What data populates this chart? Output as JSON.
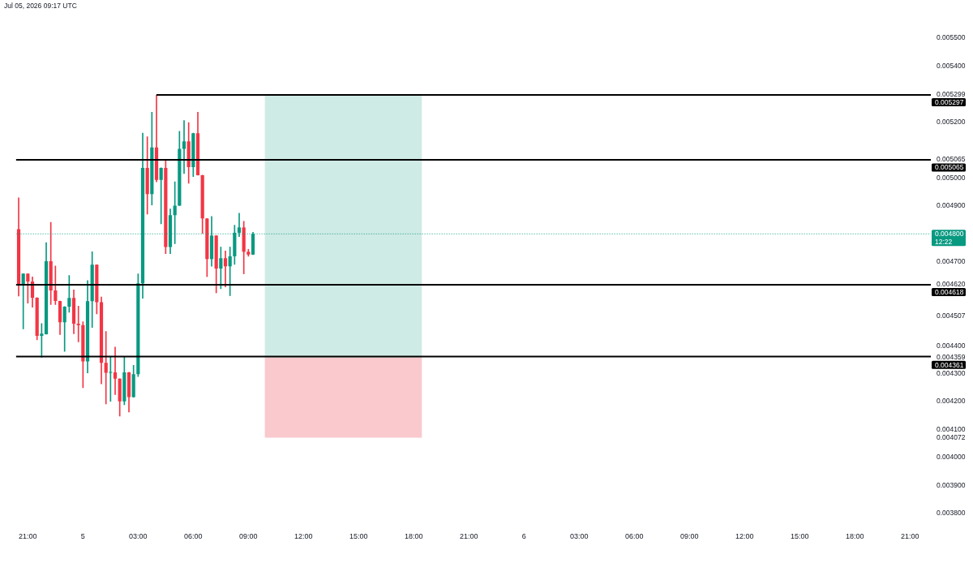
{
  "chart_data": {
    "type": "candlestick",
    "title": "Jul 05, 2026 09:17 UTC",
    "x": [
      "2026-07-04T20:30",
      "2026-07-04T20:45",
      "2026-07-04T21:00",
      "2026-07-04T21:15",
      "2026-07-04T21:30",
      "2026-07-04T21:45",
      "2026-07-04T22:00",
      "2026-07-04T22:15",
      "2026-07-04T22:30",
      "2026-07-04T22:45",
      "2026-07-04T23:00",
      "2026-07-04T23:15",
      "2026-07-04T23:30",
      "2026-07-04T23:45",
      "2026-07-05T00:00",
      "2026-07-05T00:15",
      "2026-07-05T00:30",
      "2026-07-05T00:45",
      "2026-07-05T01:00",
      "2026-07-05T01:15",
      "2026-07-05T01:30",
      "2026-07-05T01:45",
      "2026-07-05T02:00",
      "2026-07-05T02:15",
      "2026-07-05T02:30",
      "2026-07-05T02:45",
      "2026-07-05T03:00",
      "2026-07-05T03:15",
      "2026-07-05T03:30",
      "2026-07-05T03:45",
      "2026-07-05T04:00",
      "2026-07-05T04:15",
      "2026-07-05T04:30",
      "2026-07-05T04:45",
      "2026-07-05T05:00",
      "2026-07-05T05:15",
      "2026-07-05T05:30",
      "2026-07-05T05:45",
      "2026-07-05T06:00",
      "2026-07-05T06:15",
      "2026-07-05T06:30",
      "2026-07-05T06:45",
      "2026-07-05T07:00",
      "2026-07-05T07:15",
      "2026-07-05T07:30",
      "2026-07-05T07:45",
      "2026-07-05T08:00",
      "2026-07-05T08:15",
      "2026-07-05T08:30",
      "2026-07-05T08:45",
      "2026-07-05T09:00",
      "2026-07-05T09:15"
    ],
    "ohlc": [
      [
        0.004817,
        0.004929,
        0.004578,
        0.004617
      ],
      [
        0.004617,
        0.004658,
        0.00446,
        0.004658
      ],
      [
        0.004658,
        0.004658,
        0.004552,
        0.00463
      ],
      [
        0.00463,
        0.004646,
        0.004538,
        0.004572
      ],
      [
        0.004572,
        0.004572,
        0.004421,
        0.004435
      ],
      [
        0.004435,
        0.004479,
        0.004359,
        0.004443
      ],
      [
        0.004441,
        0.004769,
        0.004441,
        0.004702
      ],
      [
        0.004702,
        0.004841,
        0.004547,
        0.004598
      ],
      [
        0.004598,
        0.004685,
        0.004547,
        0.00456
      ],
      [
        0.00456,
        0.00456,
        0.00444,
        0.004484
      ],
      [
        0.004484,
        0.00454,
        0.00438,
        0.00454
      ],
      [
        0.00454,
        0.004651,
        0.00452,
        0.004571
      ],
      [
        0.004571,
        0.0046,
        0.004443,
        0.004479
      ],
      [
        0.004479,
        0.004542,
        0.004414,
        0.004474
      ],
      [
        0.004474,
        0.004486,
        0.00425,
        0.004344
      ],
      [
        0.004344,
        0.004633,
        0.004303,
        0.004559
      ],
      [
        0.004559,
        0.004736,
        0.004465,
        0.00469
      ],
      [
        0.00469,
        0.00469,
        0.004514,
        0.004556
      ],
      [
        0.004556,
        0.004574,
        0.004264,
        0.004339
      ],
      [
        0.004339,
        0.004451,
        0.004192,
        0.004303
      ],
      [
        0.004303,
        0.004359,
        0.004201,
        0.004305
      ],
      [
        0.004305,
        0.004395,
        0.004225,
        0.004282
      ],
      [
        0.004282,
        0.004282,
        0.004148,
        0.004201
      ],
      [
        0.004201,
        0.004361,
        0.004189,
        0.004305
      ],
      [
        0.004305,
        0.004305,
        0.004163,
        0.004216
      ],
      [
        0.004216,
        0.00433,
        0.004216,
        0.004298
      ],
      [
        0.004298,
        0.004657,
        0.00429,
        0.004623
      ],
      [
        0.004623,
        0.00516,
        0.00457,
        0.005036
      ],
      [
        0.005036,
        0.005147,
        0.004871,
        0.004942
      ],
      [
        0.004942,
        0.005235,
        0.004903,
        0.005109
      ],
      [
        0.005109,
        0.005297,
        0.004986,
        0.004993
      ],
      [
        0.004993,
        0.005036,
        0.004836,
        0.005036
      ],
      [
        0.005036,
        0.005063,
        0.004729,
        0.004753
      ],
      [
        0.004753,
        0.004889,
        0.004729,
        0.004867
      ],
      [
        0.004867,
        0.004986,
        0.004765,
        0.004901
      ],
      [
        0.004901,
        0.005167,
        0.004901,
        0.005104
      ],
      [
        0.005104,
        0.005205,
        0.005016,
        0.005131
      ],
      [
        0.005131,
        0.005198,
        0.004981,
        0.005039
      ],
      [
        0.005039,
        0.00516,
        0.005005,
        0.00516
      ],
      [
        0.00516,
        0.005235,
        0.00501,
        0.00501
      ],
      [
        0.00501,
        0.00501,
        0.004802,
        0.004855
      ],
      [
        0.004855,
        0.004855,
        0.004647,
        0.00471
      ],
      [
        0.00471,
        0.004862,
        0.004684,
        0.004794
      ],
      [
        0.004794,
        0.004794,
        0.004589,
        0.004676
      ],
      [
        0.004676,
        0.004753,
        0.004604,
        0.004713
      ],
      [
        0.004713,
        0.004739,
        0.00461,
        0.004684
      ],
      [
        0.004684,
        0.004753,
        0.004579,
        0.00472
      ],
      [
        0.00472,
        0.004831,
        0.004691,
        0.004804
      ],
      [
        0.004804,
        0.004874,
        0.00479,
        0.004823
      ],
      [
        0.004823,
        0.004845,
        0.004657,
        0.004736
      ],
      [
        0.004736,
        0.004745,
        0.00472,
        0.004726
      ],
      [
        0.004726,
        0.004806,
        0.004726,
        0.0048
      ]
    ],
    "colors": [
      "#f23645",
      "#089981",
      "#f23645",
      "#f23645",
      "#f23645",
      "#089981",
      "#089981",
      "#f23645",
      "#f23645",
      "#f23645",
      "#089981",
      "#089981",
      "#f23645",
      "#f23645",
      "#f23645",
      "#089981",
      "#089981",
      "#f23645",
      "#f23645",
      "#f23645",
      "#089981",
      "#f23645",
      "#f23645",
      "#089981",
      "#f23645",
      "#089981",
      "#089981",
      "#089981",
      "#f23645",
      "#089981",
      "#f23645",
      "#089981",
      "#f23645",
      "#089981",
      "#089981",
      "#089981",
      "#089981",
      "#f23645",
      "#089981",
      "#f23645",
      "#f23645",
      "#f23645",
      "#089981",
      "#f23645",
      "#089981",
      "#f23645",
      "#089981",
      "#089981",
      "#089981",
      "#f23645",
      "#f23645",
      "#089981"
    ],
    "series": [
      {
        "type": "bar",
        "x": [
          "2026-07-05T14:10"
        ],
        "base": [
          0.004359
        ],
        "values": [
          0.00094
        ],
        "color": "#cfebe5"
      },
      {
        "type": "bar",
        "x": [
          "2026-07-05T14:10"
        ],
        "base": [
          0.004072
        ],
        "values": [
          0.000287
        ],
        "color": "#fac9cd"
      },
      {
        "type": "line",
        "name": "0.005297",
        "x": [
          "2026-07-05T04:00",
          "2026-07-06T22:08"
        ],
        "values": [
          0.005297,
          0.005297
        ],
        "color": "#000000"
      }
    ],
    "xlim": [
      "2026-07-04T20:21",
      "2026-07-06T22:08"
    ],
    "ylim": [
      0.0038,
      0.0055
    ],
    "xticks": [
      {
        "value": "2026-07-04T21:00",
        "label": "21:00"
      },
      {
        "value": "2026-07-05T00:00",
        "label": "5"
      },
      {
        "value": "2026-07-05T03:00",
        "label": "03:00"
      },
      {
        "value": "2026-07-05T06:00",
        "label": "06:00"
      },
      {
        "value": "2026-07-05T09:00",
        "label": "09:00"
      },
      {
        "value": "2026-07-05T12:00",
        "label": "12:00"
      },
      {
        "value": "2026-07-05T15:00",
        "label": "15:00"
      },
      {
        "value": "2026-07-05T18:00",
        "label": "18:00"
      },
      {
        "value": "2026-07-05T21:00",
        "label": "21:00"
      },
      {
        "value": "2026-07-06T00:00",
        "label": "6"
      },
      {
        "value": "2026-07-06T03:00",
        "label": "03:00"
      },
      {
        "value": "2026-07-06T06:00",
        "label": "06:00"
      },
      {
        "value": "2026-07-06T09:00",
        "label": "09:00"
      },
      {
        "value": "2026-07-06T12:00",
        "label": "12:00"
      },
      {
        "value": "2026-07-06T15:00",
        "label": "15:00"
      },
      {
        "value": "2026-07-06T18:00",
        "label": "18:00"
      },
      {
        "value": "2026-07-06T21:00",
        "label": "21:00"
      }
    ],
    "yticks": [
      {
        "value": 0.0055,
        "label": "0.005500"
      },
      {
        "value": 0.0054,
        "label": "0.005400"
      },
      {
        "value": 0.005299,
        "label": "0.005299"
      },
      {
        "value": 0.0052,
        "label": "0.005200"
      },
      {
        "value": 0.005065,
        "label": "0.005065"
      },
      {
        "value": 0.005,
        "label": "0.005000"
      },
      {
        "value": 0.0049,
        "label": "0.004900"
      },
      {
        "value": 0.0047,
        "label": "0.004700"
      },
      {
        "value": 0.00462,
        "label": "0.004620"
      },
      {
        "value": 0.004507,
        "label": "0.004507"
      },
      {
        "value": 0.0044,
        "label": "0.004400"
      },
      {
        "value": 0.004359,
        "label": "0.004359"
      },
      {
        "value": 0.0043,
        "label": "0.004300"
      },
      {
        "value": 0.0042,
        "label": "0.004200"
      },
      {
        "value": 0.0041,
        "label": "0.004100"
      },
      {
        "value": 0.004072,
        "label": "0.004072"
      },
      {
        "value": 0.004,
        "label": "0.004000"
      },
      {
        "value": 0.0039,
        "label": "0.003900"
      },
      {
        "value": 0.0038,
        "label": "0.003800"
      }
    ],
    "ref_lines": [
      {
        "axis": "y",
        "value": 0.005065,
        "label": "0.005065",
        "color": "#000000"
      },
      {
        "axis": "y",
        "value": 0.004618,
        "label": "0.004618",
        "color": "#000000"
      },
      {
        "axis": "y",
        "value": 0.004361,
        "label": "0.004361",
        "color": "#000000"
      },
      {
        "axis": "y",
        "value": 0.0048,
        "label": "0.004800\n12:22",
        "color": "#089981",
        "line_style": "dotted"
      }
    ]
  }
}
